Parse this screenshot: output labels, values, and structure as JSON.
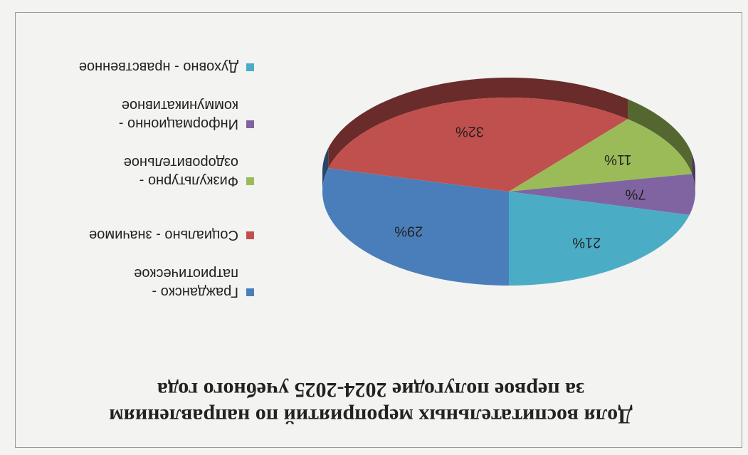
{
  "chart_data": {
    "type": "pie",
    "title": "Доля воспитательных мероприятий по направлениям за первое полугодие 2024-2025 учебного года",
    "categories": [
      "Гражданско - патриотическое",
      "Социально - значимое",
      "Физкультурно - оздоровительное",
      "Информационно - коммуникативное",
      "Духовно - нравственное"
    ],
    "values": [
      29,
      32,
      11,
      7,
      21
    ],
    "value_labels": [
      "29%",
      "32%",
      "11%",
      "7%",
      "21%"
    ],
    "colors": [
      "#4a7ebb",
      "#c0504d",
      "#9bbb59",
      "#8064a2",
      "#4bacc6"
    ],
    "legend": "right"
  }
}
